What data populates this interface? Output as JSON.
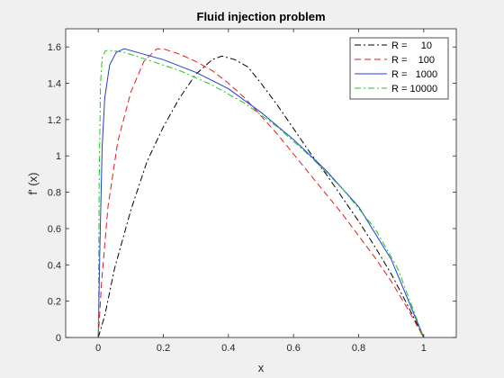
{
  "chart_data": {
    "type": "line",
    "title": "Fluid injection problem",
    "xlabel": "x",
    "ylabel": "f' (x)",
    "xlim": [
      -0.1,
      1.1
    ],
    "ylim": [
      0,
      1.7
    ],
    "xticks": [
      0,
      0.2,
      0.4,
      0.6,
      0.8,
      1
    ],
    "xtick_labels": [
      "0",
      "0.2",
      "0.4",
      "0.6",
      "0.8",
      "1"
    ],
    "yticks": [
      0,
      0.2,
      0.4,
      0.6,
      0.8,
      1,
      1.2,
      1.4,
      1.6
    ],
    "ytick_labels": [
      "0",
      "0.2",
      "0.4",
      "0.6",
      "0.8",
      "1",
      "1.2",
      "1.4",
      "1.6"
    ],
    "grid": false,
    "legend_position": "top-right",
    "series": [
      {
        "name": "R =     10",
        "color": "#000000",
        "dash": "dashdot",
        "points": [
          [
            0,
            0
          ],
          [
            0.02,
            0.12
          ],
          [
            0.05,
            0.38
          ],
          [
            0.1,
            0.7
          ],
          [
            0.15,
            0.97
          ],
          [
            0.2,
            1.16
          ],
          [
            0.25,
            1.32
          ],
          [
            0.3,
            1.45
          ],
          [
            0.35,
            1.53
          ],
          [
            0.38,
            1.55
          ],
          [
            0.42,
            1.53
          ],
          [
            0.46,
            1.49
          ],
          [
            0.5,
            1.4
          ],
          [
            0.55,
            1.28
          ],
          [
            0.6,
            1.15
          ],
          [
            0.65,
            1.02
          ],
          [
            0.7,
            0.9
          ],
          [
            0.75,
            0.77
          ],
          [
            0.8,
            0.64
          ],
          [
            0.85,
            0.5
          ],
          [
            0.9,
            0.35
          ],
          [
            0.95,
            0.18
          ],
          [
            1.0,
            0
          ]
        ]
      },
      {
        "name": "R =    100",
        "color": "#e31a1c",
        "dash": "dashed",
        "points": [
          [
            0,
            0
          ],
          [
            0.01,
            0.3
          ],
          [
            0.03,
            0.72
          ],
          [
            0.06,
            1.08
          ],
          [
            0.1,
            1.35
          ],
          [
            0.14,
            1.52
          ],
          [
            0.18,
            1.59
          ],
          [
            0.2,
            1.59
          ],
          [
            0.25,
            1.56
          ],
          [
            0.3,
            1.52
          ],
          [
            0.35,
            1.47
          ],
          [
            0.4,
            1.4
          ],
          [
            0.45,
            1.32
          ],
          [
            0.5,
            1.22
          ],
          [
            0.55,
            1.12
          ],
          [
            0.6,
            1.01
          ],
          [
            0.65,
            0.9
          ],
          [
            0.7,
            0.79
          ],
          [
            0.75,
            0.68
          ],
          [
            0.8,
            0.56
          ],
          [
            0.85,
            0.44
          ],
          [
            0.9,
            0.31
          ],
          [
            0.95,
            0.16
          ],
          [
            1.0,
            0
          ]
        ]
      },
      {
        "name": "R =   1000",
        "color": "#1f3fd4",
        "dash": "solid",
        "points": [
          [
            0,
            0
          ],
          [
            0.005,
            0.5
          ],
          [
            0.012,
            1.05
          ],
          [
            0.02,
            1.32
          ],
          [
            0.035,
            1.5
          ],
          [
            0.055,
            1.57
          ],
          [
            0.08,
            1.59
          ],
          [
            0.12,
            1.57
          ],
          [
            0.2,
            1.53
          ],
          [
            0.3,
            1.46
          ],
          [
            0.4,
            1.37
          ],
          [
            0.5,
            1.24
          ],
          [
            0.6,
            1.09
          ],
          [
            0.7,
            0.92
          ],
          [
            0.8,
            0.72
          ],
          [
            0.9,
            0.43
          ],
          [
            1.0,
            0
          ]
        ]
      },
      {
        "name": "R = 10000",
        "color": "#21c421",
        "dash": "dashdot",
        "points": [
          [
            0,
            0
          ],
          [
            0.003,
            0.9
          ],
          [
            0.007,
            1.4
          ],
          [
            0.012,
            1.54
          ],
          [
            0.022,
            1.58
          ],
          [
            0.04,
            1.58
          ],
          [
            0.08,
            1.57
          ],
          [
            0.15,
            1.53
          ],
          [
            0.25,
            1.47
          ],
          [
            0.35,
            1.39
          ],
          [
            0.45,
            1.29
          ],
          [
            0.55,
            1.16
          ],
          [
            0.65,
            1.0
          ],
          [
            0.75,
            0.82
          ],
          [
            0.85,
            0.6
          ],
          [
            0.92,
            0.38
          ],
          [
            1.0,
            0
          ]
        ]
      }
    ]
  }
}
